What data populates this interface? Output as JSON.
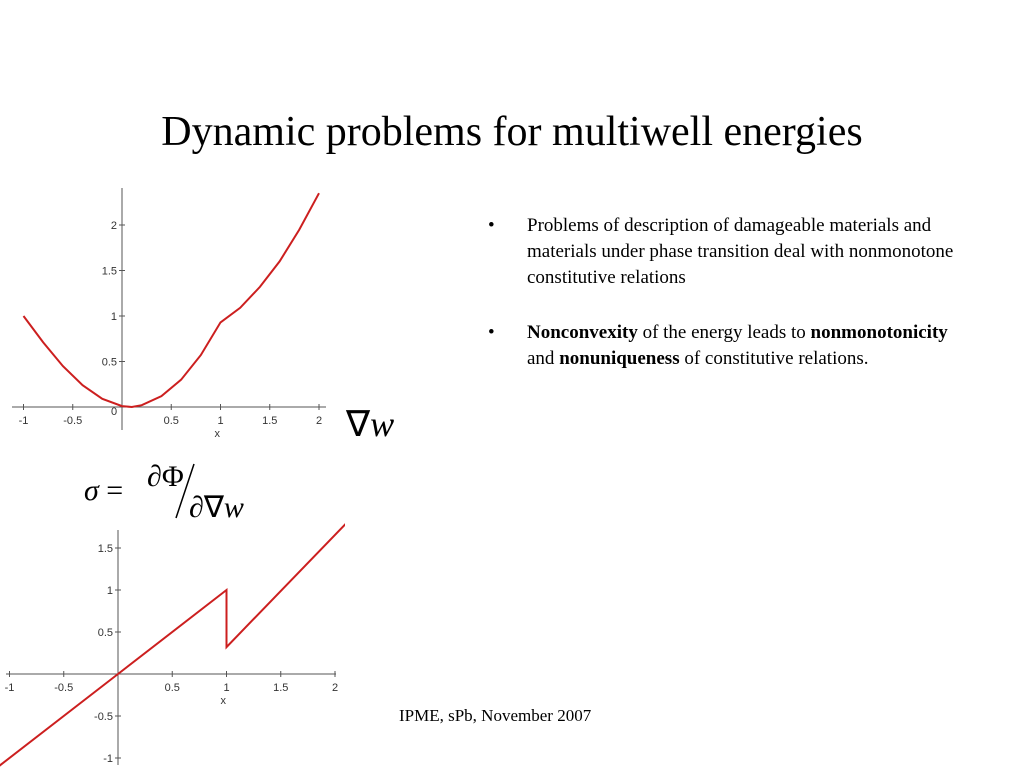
{
  "slide": {
    "title": "Dynamic problems for multiwell energies",
    "footer": "IPME, sPb, November 2007"
  },
  "bullets": [
    {
      "marker": "•",
      "segments": [
        {
          "text": "Problems of description of damageable materials and materials under phase transition deal with nonmonotone constitutive relations",
          "bold": false
        }
      ]
    },
    {
      "marker": "•",
      "segments": [
        {
          "text": "Nonconvexity",
          "bold": true
        },
        {
          "text": " of the energy leads to ",
          "bold": false
        },
        {
          "text": "nonmonotonicity",
          "bold": true
        },
        {
          "text": " and  ",
          "bold": false
        },
        {
          "text": "nonuniqueness",
          "bold": true
        },
        {
          "text": " of constitutive relations.",
          "bold": false
        }
      ]
    }
  ],
  "math": {
    "gradw_nabla": "∇",
    "gradw_w": "w",
    "sigma": "σ",
    "equals": "=",
    "numerator": "∂Φ",
    "slash": "/",
    "denominator_prefix": "∂∇",
    "denominator_w": "w"
  },
  "chart_data": [
    {
      "type": "line",
      "title": "",
      "xlabel": "x",
      "ylabel": "",
      "xlim": [
        -1,
        2
      ],
      "ylim": [
        -0.05,
        2.35
      ],
      "xticks": [
        "-1",
        "-0.5",
        "0",
        "0.5",
        "1",
        "1.5",
        "2"
      ],
      "yticks": [
        "0.5",
        "1",
        "1.5",
        "2"
      ],
      "color": "#cc1f1f",
      "series": [
        {
          "x": [
            -1,
            -0.8,
            -0.6,
            -0.4,
            -0.2,
            0,
            0.1,
            0.2,
            0.4,
            0.6,
            0.8,
            1.0,
            1.2,
            1.4,
            1.6,
            1.8,
            2.0
          ],
          "y": [
            1.0,
            0.71,
            0.45,
            0.24,
            0.09,
            0.01,
            0.0,
            0.02,
            0.12,
            0.3,
            0.57,
            0.93,
            1.09,
            1.32,
            1.6,
            1.95,
            2.35
          ]
        }
      ]
    },
    {
      "type": "line",
      "title": "",
      "xlabel": "x",
      "ylabel": "",
      "xlim": [
        -1,
        2
      ],
      "ylim": [
        -1,
        1.9
      ],
      "xticks": [
        "-1",
        "-0.5",
        "0.5",
        "1",
        "1.5",
        "2"
      ],
      "yticks": [
        "-1",
        "-0.5",
        "0.5",
        "1",
        "1.5"
      ],
      "color": "#cc1f1f",
      "series": [
        {
          "x": [
            -1.1,
            0,
            1.0,
            1.0,
            2.1
          ],
          "y": [
            -1.1,
            0,
            1.0,
            0.32,
            1.79
          ]
        }
      ]
    }
  ]
}
